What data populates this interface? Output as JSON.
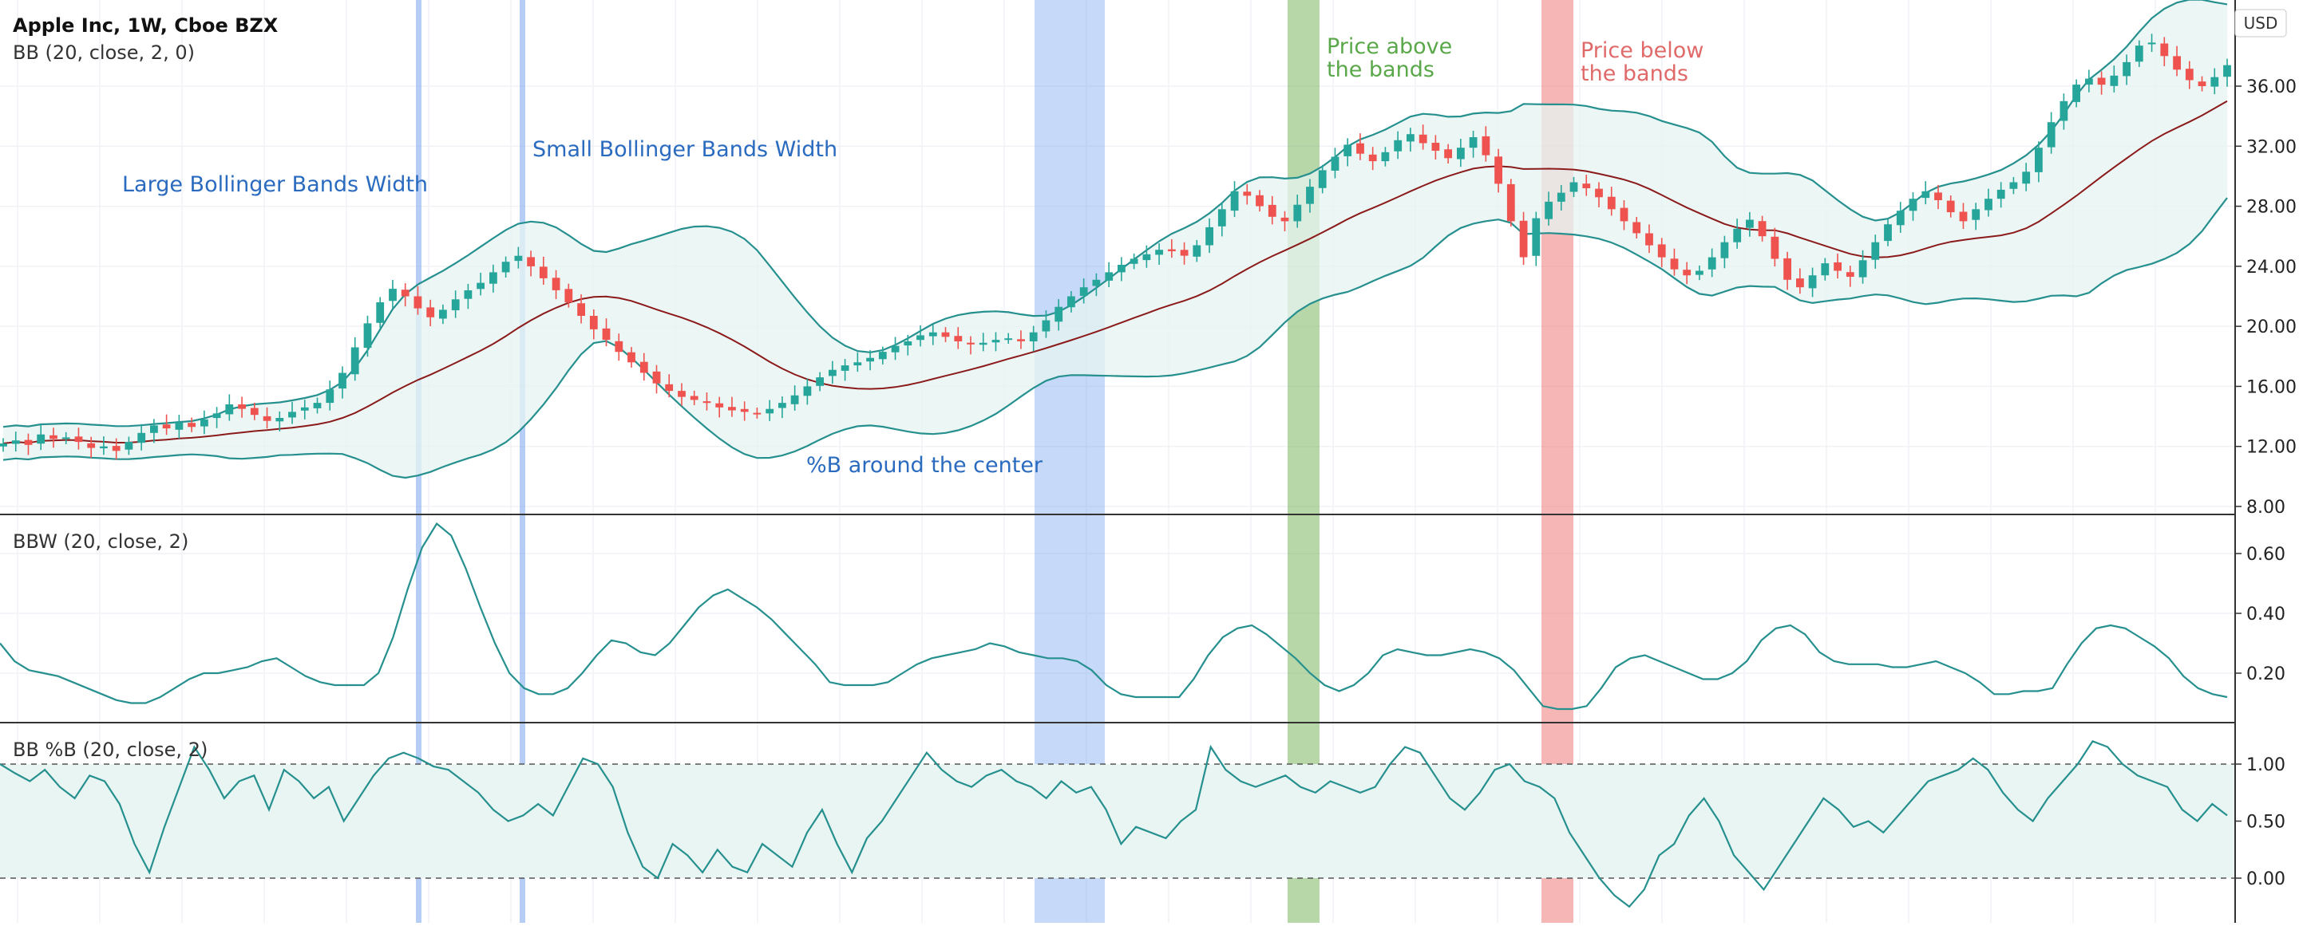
{
  "header": {
    "title": "Apple Inc, 1W, Cboe BZX",
    "indicator_bb": "BB (20, close, 2, 0)",
    "currency": "USD"
  },
  "colors": {
    "up": "#26a69a",
    "down": "#ef5350",
    "band": "#26908f",
    "basis": "#8b1a1a",
    "band_fill": "#e6f4f2",
    "blue_highlight": "#7aa4ef",
    "green_highlight": "#7bb662",
    "red_highlight": "#ef7a7a",
    "annotation_blue": "#2a6bbf",
    "annotation_green": "#5aa84a",
    "annotation_red": "#e06a6a"
  },
  "annotations": {
    "large_width": "Large Bollinger Bands Width",
    "small_width": "Small Bollinger Bands Width",
    "pctb_center": "%B around the center",
    "price_above_1": "Price above",
    "price_above_2": "the bands",
    "price_below_1": "Price below",
    "price_below_2": "the bands"
  },
  "panels": {
    "bbw_label": "BBW (20, close, 2)",
    "pctb_label": "BB %B (20, close, 2)"
  },
  "chart_data": [
    {
      "type": "candlestick",
      "title": "Apple Inc, 1W, Cboe BZX",
      "yticks": [
        "36.00",
        "32.00",
        "28.00",
        "24.00",
        "20.00",
        "16.00",
        "12.00",
        "8.00"
      ],
      "ylim": [
        8,
        40
      ],
      "close": [
        12.2,
        12.4,
        12.1,
        12.8,
        12.5,
        12.6,
        12.3,
        11.9,
        12.0,
        11.7,
        12.3,
        12.9,
        13.4,
        13.2,
        13.6,
        13.3,
        13.8,
        14.2,
        14.8,
        14.5,
        14.1,
        13.7,
        13.9,
        14.3,
        14.6,
        14.9,
        15.8,
        16.9,
        18.6,
        20.2,
        21.6,
        22.5,
        22.0,
        21.2,
        20.6,
        21.1,
        21.8,
        22.4,
        22.9,
        23.6,
        24.3,
        24.7,
        24.0,
        23.2,
        22.4,
        21.6,
        20.7,
        19.8,
        19.1,
        18.3,
        17.6,
        16.9,
        16.2,
        15.7,
        15.3,
        15.1,
        14.9,
        14.6,
        14.4,
        14.3,
        14.2,
        14.5,
        14.9,
        15.4,
        16.0,
        16.6,
        17.1,
        17.4,
        17.6,
        17.9,
        18.3,
        18.7,
        19.0,
        19.4,
        19.6,
        19.3,
        19.0,
        18.8,
        18.9,
        19.1,
        19.2,
        19.0,
        19.6,
        20.4,
        21.3,
        22.0,
        22.6,
        23.1,
        23.6,
        24.1,
        24.5,
        24.8,
        25.1,
        25.0,
        24.7,
        25.4,
        26.6,
        27.8,
        29.0,
        28.7,
        28.0,
        27.3,
        27.0,
        28.1,
        29.3,
        30.4,
        31.3,
        32.1,
        31.5,
        31.0,
        31.6,
        32.4,
        32.8,
        32.2,
        31.7,
        31.2,
        31.9,
        32.6,
        31.4,
        29.5,
        27.0,
        24.6,
        27.2,
        28.3,
        28.9,
        29.6,
        29.2,
        28.6,
        27.8,
        27.0,
        26.2,
        25.4,
        24.6,
        23.8,
        23.4,
        23.7,
        24.6,
        25.6,
        26.5,
        27.1,
        26.0,
        24.5,
        23.1,
        22.6,
        23.4,
        24.2,
        23.7,
        23.3,
        24.4,
        25.6,
        26.8,
        27.7,
        28.5,
        29.0,
        28.4,
        27.6,
        27.0,
        27.8,
        28.5,
        29.1,
        29.6,
        30.3,
        31.9,
        33.6,
        35.0,
        36.1,
        36.5,
        36.1,
        36.7,
        37.6,
        38.7,
        38.9,
        38.0,
        37.1,
        36.4,
        36.0,
        36.6,
        37.4
      ]
    },
    {
      "type": "line",
      "title": "BBW (20, close, 2)",
      "yticks": [
        "0.60",
        "0.40",
        "0.20"
      ],
      "ylim": [
        0.06,
        0.72
      ],
      "values": [
        0.3,
        0.24,
        0.21,
        0.2,
        0.19,
        0.17,
        0.15,
        0.13,
        0.11,
        0.1,
        0.1,
        0.12,
        0.15,
        0.18,
        0.2,
        0.2,
        0.21,
        0.22,
        0.24,
        0.25,
        0.22,
        0.19,
        0.17,
        0.16,
        0.16,
        0.16,
        0.2,
        0.32,
        0.48,
        0.62,
        0.7,
        0.66,
        0.55,
        0.42,
        0.3,
        0.2,
        0.15,
        0.13,
        0.13,
        0.15,
        0.2,
        0.26,
        0.31,
        0.3,
        0.27,
        0.26,
        0.3,
        0.36,
        0.42,
        0.46,
        0.48,
        0.45,
        0.42,
        0.38,
        0.33,
        0.28,
        0.23,
        0.17,
        0.16,
        0.16,
        0.16,
        0.17,
        0.2,
        0.23,
        0.25,
        0.26,
        0.27,
        0.28,
        0.3,
        0.29,
        0.27,
        0.26,
        0.25,
        0.25,
        0.24,
        0.21,
        0.16,
        0.13,
        0.12,
        0.12,
        0.12,
        0.12,
        0.18,
        0.26,
        0.32,
        0.35,
        0.36,
        0.33,
        0.29,
        0.25,
        0.2,
        0.16,
        0.14,
        0.16,
        0.2,
        0.26,
        0.28,
        0.27,
        0.26,
        0.26,
        0.27,
        0.28,
        0.27,
        0.25,
        0.21,
        0.15,
        0.09,
        0.08,
        0.08,
        0.09,
        0.15,
        0.22,
        0.25,
        0.26,
        0.24,
        0.22,
        0.2,
        0.18,
        0.18,
        0.2,
        0.24,
        0.31,
        0.35,
        0.36,
        0.33,
        0.27,
        0.24,
        0.23,
        0.23,
        0.23,
        0.22,
        0.22,
        0.23,
        0.24,
        0.22,
        0.2,
        0.17,
        0.13,
        0.13,
        0.14,
        0.14,
        0.15,
        0.23,
        0.3,
        0.35,
        0.36,
        0.35,
        0.32,
        0.29,
        0.25,
        0.19,
        0.15,
        0.13,
        0.12
      ]
    },
    {
      "type": "line",
      "title": "BB %B (20, close, 2)",
      "yticks": [
        "1.00",
        "0.50",
        "0.00"
      ],
      "ylim": [
        -0.3,
        1.3
      ],
      "values": [
        1.0,
        0.92,
        0.85,
        0.95,
        0.8,
        0.7,
        0.9,
        0.85,
        0.65,
        0.3,
        0.05,
        0.45,
        0.8,
        1.15,
        0.95,
        0.7,
        0.85,
        0.9,
        0.6,
        0.95,
        0.85,
        0.7,
        0.8,
        0.5,
        0.7,
        0.9,
        1.05,
        1.1,
        1.05,
        0.98,
        0.95,
        0.85,
        0.75,
        0.6,
        0.5,
        0.55,
        0.65,
        0.55,
        0.8,
        1.05,
        1.0,
        0.8,
        0.4,
        0.1,
        0.0,
        0.3,
        0.2,
        0.05,
        0.25,
        0.1,
        0.05,
        0.3,
        0.2,
        0.1,
        0.4,
        0.6,
        0.3,
        0.05,
        0.35,
        0.5,
        0.7,
        0.9,
        1.1,
        0.95,
        0.85,
        0.8,
        0.9,
        0.95,
        0.85,
        0.8,
        0.7,
        0.85,
        0.75,
        0.8,
        0.6,
        0.3,
        0.45,
        0.4,
        0.35,
        0.5,
        0.6,
        1.15,
        0.95,
        0.85,
        0.8,
        0.85,
        0.9,
        0.8,
        0.75,
        0.85,
        0.8,
        0.75,
        0.8,
        1.0,
        1.15,
        1.1,
        0.9,
        0.7,
        0.6,
        0.75,
        0.95,
        1.0,
        0.85,
        0.8,
        0.7,
        0.4,
        0.2,
        0.0,
        -0.15,
        -0.25,
        -0.1,
        0.2,
        0.3,
        0.55,
        0.7,
        0.5,
        0.2,
        0.05,
        -0.1,
        0.1,
        0.3,
        0.5,
        0.7,
        0.6,
        0.45,
        0.5,
        0.4,
        0.55,
        0.7,
        0.85,
        0.9,
        0.95,
        1.05,
        0.95,
        0.75,
        0.6,
        0.5,
        0.7,
        0.85,
        1.0,
        1.2,
        1.15,
        1.0,
        0.9,
        0.85,
        0.8,
        0.6,
        0.5,
        0.65,
        0.55
      ]
    }
  ]
}
